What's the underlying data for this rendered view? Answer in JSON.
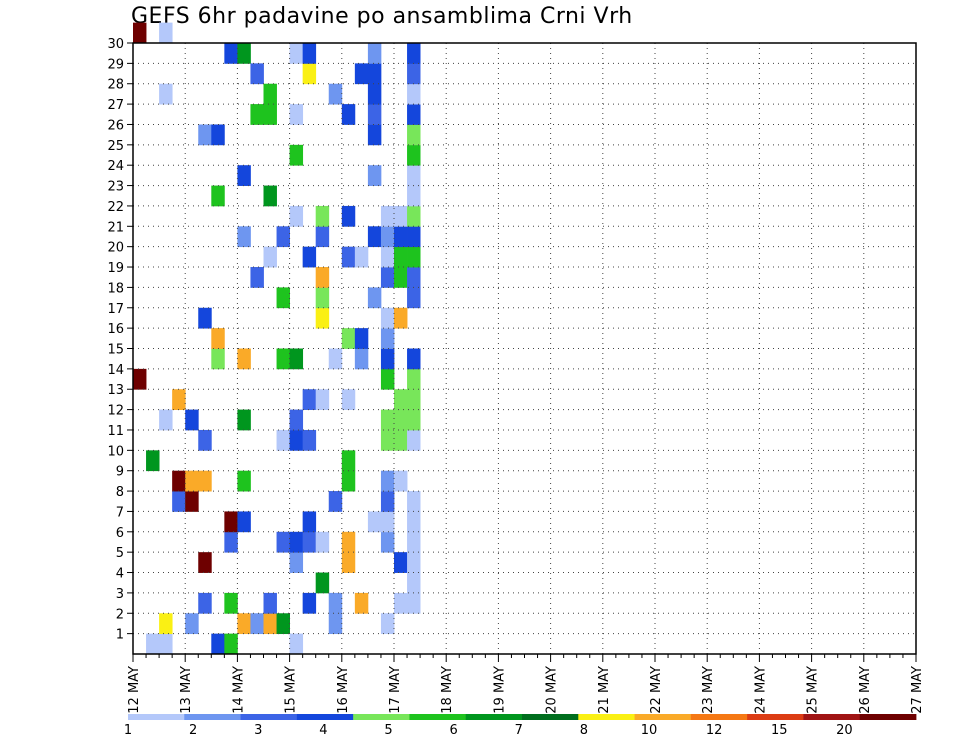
{
  "chart_data": {
    "type": "heatmap",
    "title": "GEFS 6hr padavine po ansamblima Crni Vrh",
    "xlabel": "",
    "ylabel": "",
    "x_tick_labels": [
      "12 MAY",
      "13 MAY",
      "14 MAY",
      "15 MAY",
      "16 MAY",
      "17 MAY",
      "18 MAY",
      "19 MAY",
      "20 MAY",
      "21 MAY",
      "22 MAY",
      "23 MAY",
      "24 MAY",
      "25 MAY",
      "26 MAY",
      "27 MAY"
    ],
    "y_tick_labels": [
      "1",
      "2",
      "3",
      "4",
      "5",
      "6",
      "7",
      "8",
      "9",
      "10",
      "11",
      "12",
      "13",
      "14",
      "15",
      "16",
      "17",
      "18",
      "19",
      "20",
      "21",
      "22",
      "23",
      "24",
      "25",
      "26",
      "27",
      "28",
      "29",
      "30"
    ],
    "ylim": [
      0,
      30
    ],
    "grid": true,
    "columns_per_day": 4,
    "colorbar": {
      "labels": [
        "1",
        "2",
        "3",
        "4",
        "5",
        "6",
        "7",
        "8",
        "10",
        "12",
        "15",
        "20"
      ],
      "colors": [
        "#b4c8fa",
        "#6e96f0",
        "#3c64e6",
        "#1446dc",
        "#78e65a",
        "#1ec31e",
        "#00961e",
        "#006e1e",
        "#faf014",
        "#faaa28",
        "#f57814",
        "#dc3c14",
        "#a01414",
        "#6e0000"
      ]
    },
    "cells": [
      [
        13,
        0,
        13
      ],
      [
        30,
        0,
        13
      ],
      [
        0,
        1,
        0
      ],
      [
        9,
        1,
        6
      ],
      [
        0,
        2,
        0
      ],
      [
        11,
        2,
        0
      ],
      [
        1,
        2,
        8
      ],
      [
        27,
        2,
        0
      ],
      [
        30,
        2,
        0
      ],
      [
        7,
        3,
        2
      ],
      [
        8,
        3,
        13
      ],
      [
        12,
        3,
        9
      ],
      [
        7,
        4,
        13
      ],
      [
        8,
        4,
        9
      ],
      [
        11,
        4,
        3
      ],
      [
        1,
        4,
        1
      ],
      [
        2,
        5,
        2
      ],
      [
        4,
        5,
        13
      ],
      [
        8,
        5,
        9
      ],
      [
        10,
        5,
        2
      ],
      [
        16,
        5,
        3
      ],
      [
        25,
        5,
        1
      ],
      [
        0,
        6,
        3
      ],
      [
        14,
        6,
        4
      ],
      [
        15,
        6,
        9
      ],
      [
        22,
        6,
        5
      ],
      [
        25,
        6,
        3
      ],
      [
        0,
        7,
        5
      ],
      [
        2,
        7,
        5
      ],
      [
        5,
        7,
        2
      ],
      [
        6,
        7,
        13
      ],
      [
        29,
        7,
        3
      ],
      [
        1,
        8,
        9
      ],
      [
        6,
        8,
        3
      ],
      [
        8,
        8,
        5
      ],
      [
        11,
        8,
        6
      ],
      [
        14,
        8,
        9
      ],
      [
        20,
        8,
        1
      ],
      [
        23,
        8,
        3
      ],
      [
        29,
        8,
        6
      ],
      [
        1,
        9,
        1
      ],
      [
        18,
        9,
        2
      ],
      [
        26,
        9,
        5
      ],
      [
        28,
        9,
        2
      ],
      [
        1,
        10,
        9
      ],
      [
        2,
        10,
        2
      ],
      [
        19,
        10,
        0
      ],
      [
        22,
        10,
        6
      ],
      [
        26,
        10,
        5
      ],
      [
        27,
        10,
        5
      ],
      [
        1,
        11,
        6
      ],
      [
        5,
        11,
        2
      ],
      [
        10,
        11,
        0
      ],
      [
        14,
        11,
        5
      ],
      [
        17,
        11,
        5
      ],
      [
        20,
        11,
        2
      ],
      [
        0,
        12,
        0
      ],
      [
        4,
        12,
        1
      ],
      [
        5,
        12,
        3
      ],
      [
        10,
        12,
        3
      ],
      [
        11,
        12,
        2
      ],
      [
        14,
        12,
        6
      ],
      [
        21,
        12,
        0
      ],
      [
        24,
        12,
        5
      ],
      [
        26,
        12,
        0
      ],
      [
        29,
        12,
        0
      ],
      [
        2,
        13,
        3
      ],
      [
        5,
        13,
        2
      ],
      [
        6,
        13,
        3
      ],
      [
        10,
        13,
        2
      ],
      [
        12,
        13,
        2
      ],
      [
        19,
        13,
        3
      ],
      [
        28,
        13,
        8
      ],
      [
        29,
        13,
        3
      ],
      [
        3,
        14,
        6
      ],
      [
        5,
        14,
        0
      ],
      [
        12,
        14,
        0
      ],
      [
        16,
        14,
        8
      ],
      [
        17,
        14,
        4
      ],
      [
        18,
        14,
        9
      ],
      [
        20,
        14,
        2
      ],
      [
        21,
        14,
        4
      ],
      [
        1,
        15,
        1
      ],
      [
        2,
        15,
        1
      ],
      [
        7,
        15,
        2
      ],
      [
        14,
        15,
        0
      ],
      [
        27,
        15,
        1
      ],
      [
        4,
        16,
        9
      ],
      [
        5,
        16,
        9
      ],
      [
        8,
        16,
        5
      ],
      [
        9,
        16,
        5
      ],
      [
        12,
        16,
        0
      ],
      [
        15,
        16,
        4
      ],
      [
        19,
        16,
        2
      ],
      [
        21,
        16,
        3
      ],
      [
        26,
        16,
        3
      ],
      [
        2,
        17,
        9
      ],
      [
        14,
        17,
        1
      ],
      [
        15,
        17,
        3
      ],
      [
        19,
        17,
        0
      ],
      [
        28,
        17,
        3
      ],
      [
        6,
        18,
        0
      ],
      [
        17,
        18,
        1
      ],
      [
        20,
        18,
        3
      ],
      [
        23,
        18,
        1
      ],
      [
        25,
        18,
        3
      ],
      [
        26,
        18,
        2
      ],
      [
        27,
        18,
        3
      ],
      [
        28,
        18,
        3
      ],
      [
        29,
        18,
        1
      ],
      [
        1,
        19,
        0
      ],
      [
        5,
        19,
        1
      ],
      [
        6,
        19,
        0
      ],
      [
        7,
        19,
        2
      ],
      [
        8,
        19,
        1
      ],
      [
        10,
        19,
        4
      ],
      [
        11,
        19,
        4
      ],
      [
        13,
        19,
        5
      ],
      [
        14,
        19,
        3
      ],
      [
        15,
        19,
        1
      ],
      [
        16,
        19,
        0
      ],
      [
        18,
        19,
        2
      ],
      [
        19,
        19,
        0
      ],
      [
        20,
        19,
        1
      ],
      [
        21,
        19,
        0
      ],
      [
        2,
        20,
        0
      ],
      [
        4,
        20,
        3
      ],
      [
        8,
        20,
        0
      ],
      [
        10,
        20,
        4
      ],
      [
        11,
        20,
        4
      ],
      [
        12,
        20,
        4
      ],
      [
        16,
        20,
        9
      ],
      [
        18,
        20,
        5
      ],
      [
        19,
        20,
        5
      ],
      [
        20,
        20,
        3
      ],
      [
        21,
        20,
        0
      ],
      [
        2,
        21,
        0
      ],
      [
        3,
        21,
        0
      ],
      [
        4,
        21,
        0
      ],
      [
        5,
        21,
        0
      ],
      [
        6,
        21,
        0
      ],
      [
        7,
        21,
        0
      ],
      [
        10,
        21,
        0
      ],
      [
        11,
        21,
        4
      ],
      [
        12,
        21,
        4
      ],
      [
        13,
        21,
        4
      ],
      [
        14,
        21,
        3
      ],
      [
        17,
        21,
        2
      ],
      [
        18,
        21,
        2
      ],
      [
        19,
        21,
        5
      ],
      [
        20,
        21,
        3
      ],
      [
        21,
        21,
        4
      ],
      [
        22,
        21,
        0
      ],
      [
        23,
        21,
        0
      ],
      [
        24,
        21,
        5
      ],
      [
        25,
        21,
        4
      ],
      [
        26,
        21,
        3
      ],
      [
        27,
        21,
        0
      ],
      [
        28,
        21,
        2
      ],
      [
        29,
        21,
        3
      ]
    ]
  }
}
